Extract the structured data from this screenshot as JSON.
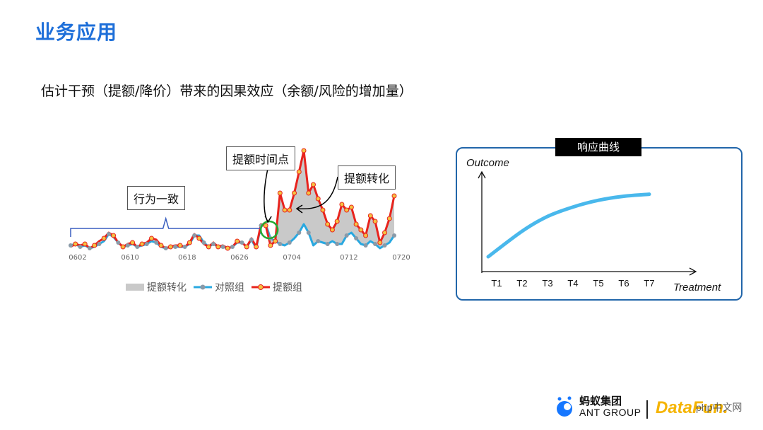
{
  "page": {
    "title": "业务应用",
    "subtitle": "估计干预（提额/降价）带来的因果效应（余额/风险的增加量）"
  },
  "callouts": {
    "consistent": "行为一致",
    "time_point": "提额时间点",
    "lift": "提额转化"
  },
  "colors": {
    "treatment": "#e8231d",
    "control": "#29a8e0",
    "area": "#c9c9c9",
    "marker_treat": "#f5c242",
    "marker_ctrl": "#8a9aa8",
    "circle": "#22aa33",
    "brace": "#3a5fc0",
    "response_curve": "#49b8ec",
    "title": "#1e6fd9"
  },
  "chart_data": [
    {
      "type": "line",
      "title": "",
      "x_ticks": [
        "0602",
        "0610",
        "0618",
        "0626",
        "0704",
        "0712",
        "0720"
      ],
      "series": [
        {
          "name": "提额组",
          "values": [
            2,
            4,
            3,
            4,
            1,
            3,
            6,
            8,
            12,
            10,
            5,
            2,
            4,
            5,
            2,
            4,
            5,
            8,
            7,
            3,
            1,
            2,
            3,
            3,
            2,
            5,
            11,
            8,
            4,
            2,
            5,
            2,
            3,
            1,
            2,
            6,
            5,
            2,
            8,
            2,
            18,
            17,
            3,
            6,
            40,
            28,
            28,
            40,
            55,
            70,
            40,
            46,
            36,
            28,
            18,
            14,
            20,
            32,
            28,
            30,
            18,
            14,
            10,
            24,
            20,
            5,
            12,
            22,
            38
          ]
        },
        {
          "name": "对照组",
          "values": [
            3,
            4,
            2,
            3,
            1,
            2,
            4,
            6,
            11,
            9,
            5,
            2,
            3,
            4,
            2,
            3,
            4,
            6,
            5,
            2,
            1,
            2,
            2,
            2,
            2,
            4,
            10,
            10,
            5,
            2,
            4,
            2,
            2,
            1,
            2,
            5,
            5,
            2,
            7,
            1,
            17,
            18,
            8,
            6,
            4,
            3,
            5,
            8,
            12,
            18,
            12,
            3,
            6,
            5,
            4,
            6,
            4,
            4,
            10,
            12,
            8,
            4,
            3,
            6,
            4,
            1,
            3,
            5,
            10
          ]
        }
      ],
      "legend": [
        "提额转化",
        "对照组",
        "提额组"
      ],
      "legend_position": "bottom",
      "intervention_index": 41
    },
    {
      "type": "line",
      "title": "响应曲线",
      "xlabel": "Treatment",
      "ylabel": "Outcome",
      "categories": [
        "T1",
        "T2",
        "T3",
        "T4",
        "T5",
        "T6",
        "T7"
      ],
      "series": [
        {
          "values": [
            0.0,
            0.38,
            0.6,
            0.74,
            0.84,
            0.9,
            0.93
          ]
        }
      ]
    }
  ],
  "logos": {
    "ant_cn": "蚂蚁集团",
    "ant_en": "ANT GROUP",
    "datafun": "DataFun.",
    "php": "php中文网"
  }
}
